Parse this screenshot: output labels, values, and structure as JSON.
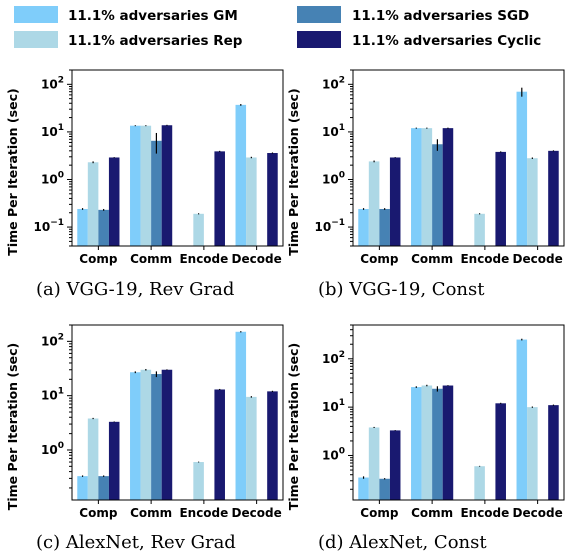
{
  "legend": [
    {
      "label": "11.1% adversaries GM",
      "color": "#7fcdfa"
    },
    {
      "label": "11.1% adversaries SGD",
      "color": "#4682b4"
    },
    {
      "label": "11.1% adversaries Rep",
      "color": "#add8e6"
    },
    {
      "label": "11.1% adversaries Cyclic",
      "color": "#191970"
    }
  ],
  "chart_data": [
    {
      "type": "bar",
      "caption": "(a)  VGG-19, Rev Grad",
      "ylabel": "Time Per Iteration (sec)",
      "yscale": "log",
      "ylim": [
        0.04,
        200
      ],
      "yticks": [
        {
          "v": 0.1,
          "base": "10",
          "exp": "−1"
        },
        {
          "v": 1,
          "base": "10",
          "exp": "0"
        },
        {
          "v": 10,
          "base": "10",
          "exp": "1"
        },
        {
          "v": 100,
          "base": "10",
          "exp": "2"
        }
      ],
      "categories": [
        "Comp",
        "Comm",
        "Encode",
        "Decode"
      ],
      "series": [
        {
          "name": "11.1% adversaries GM",
          "color": "#7fcdfa",
          "values": [
            0.24,
            13.5,
            null,
            37
          ],
          "err": [
            0.01,
            0.3,
            null,
            1.5
          ]
        },
        {
          "name": "11.1% adversaries Rep",
          "color": "#add8e6",
          "values": [
            2.3,
            13.5,
            0.19,
            2.9
          ],
          "err": [
            0.1,
            0.3,
            0.005,
            0.1
          ]
        },
        {
          "name": "11.1% adversaries SGD",
          "color": "#4682b4",
          "values": [
            0.23,
            6.5,
            null,
            null
          ],
          "err": [
            0.01,
            3.0,
            null,
            null
          ]
        },
        {
          "name": "11.1% adversaries Cyclic",
          "color": "#191970",
          "values": [
            2.9,
            13.8,
            3.9,
            3.6
          ],
          "err": [
            0.05,
            0.3,
            0.1,
            0.1
          ]
        }
      ]
    },
    {
      "type": "bar",
      "caption": "(b)  VGG-19, Const",
      "ylabel": "Time Per Iteration (sec)",
      "yscale": "log",
      "ylim": [
        0.04,
        200
      ],
      "yticks": [
        {
          "v": 0.1,
          "base": "10",
          "exp": "−1"
        },
        {
          "v": 1,
          "base": "10",
          "exp": "0"
        },
        {
          "v": 10,
          "base": "10",
          "exp": "1"
        },
        {
          "v": 100,
          "base": "10",
          "exp": "2"
        }
      ],
      "categories": [
        "Comp",
        "Comm",
        "Encode",
        "Decode"
      ],
      "series": [
        {
          "name": "11.1% adversaries GM",
          "color": "#7fcdfa",
          "values": [
            0.24,
            12,
            null,
            70
          ],
          "err": [
            0.01,
            0.3,
            null,
            15
          ]
        },
        {
          "name": "11.1% adversaries Rep",
          "color": "#add8e6",
          "values": [
            2.4,
            12,
            0.19,
            2.8
          ],
          "err": [
            0.1,
            0.3,
            0.005,
            0.1
          ]
        },
        {
          "name": "11.1% adversaries SGD",
          "color": "#4682b4",
          "values": [
            0.24,
            5.5,
            null,
            null
          ],
          "err": [
            0.01,
            1.5,
            null,
            null
          ]
        },
        {
          "name": "11.1% adversaries Cyclic",
          "color": "#191970",
          "values": [
            2.9,
            12,
            3.8,
            4.0
          ],
          "err": [
            0.05,
            0.3,
            0.1,
            0.1
          ]
        }
      ]
    },
    {
      "type": "bar",
      "caption": "(c)  AlexNet, Rev Grad",
      "ylabel": "Time Per Iteration (sec)",
      "yscale": "log",
      "ylim": [
        0.12,
        200
      ],
      "yticks": [
        {
          "v": 1,
          "base": "10",
          "exp": "0"
        },
        {
          "v": 10,
          "base": "10",
          "exp": "1"
        },
        {
          "v": 100,
          "base": "10",
          "exp": "2"
        }
      ],
      "categories": [
        "Comp",
        "Comm",
        "Encode",
        "Decode"
      ],
      "series": [
        {
          "name": "11.1% adversaries GM",
          "color": "#7fcdfa",
          "values": [
            0.33,
            27,
            null,
            150
          ],
          "err": [
            0.01,
            1,
            null,
            4
          ]
        },
        {
          "name": "11.1% adversaries Rep",
          "color": "#add8e6",
          "values": [
            3.8,
            30,
            0.6,
            9.5
          ],
          "err": [
            0.1,
            1,
            0.01,
            0.3
          ]
        },
        {
          "name": "11.1% adversaries SGD",
          "color": "#4682b4",
          "values": [
            0.33,
            25,
            null,
            null
          ],
          "err": [
            0.01,
            3,
            null,
            null
          ]
        },
        {
          "name": "11.1% adversaries Cyclic",
          "color": "#191970",
          "values": [
            3.3,
            30,
            13,
            12
          ],
          "err": [
            0.05,
            0.5,
            0.3,
            0.3
          ]
        }
      ]
    },
    {
      "type": "bar",
      "caption": "(d)  AlexNet, Const",
      "ylabel": "Time Per Iteration (sec)",
      "yscale": "log",
      "ylim": [
        0.12,
        500
      ],
      "yticks": [
        {
          "v": 1,
          "base": "10",
          "exp": "0"
        },
        {
          "v": 10,
          "base": "10",
          "exp": "1"
        },
        {
          "v": 100,
          "base": "10",
          "exp": "2"
        }
      ],
      "categories": [
        "Comp",
        "Comm",
        "Encode",
        "Decode"
      ],
      "series": [
        {
          "name": "11.1% adversaries GM",
          "color": "#7fcdfa",
          "values": [
            0.35,
            26,
            null,
            250
          ],
          "err": [
            0.02,
            1,
            null,
            10
          ]
        },
        {
          "name": "11.1% adversaries Rep",
          "color": "#add8e6",
          "values": [
            3.8,
            28,
            0.6,
            10
          ],
          "err": [
            0.1,
            1,
            0.01,
            0.3
          ]
        },
        {
          "name": "11.1% adversaries SGD",
          "color": "#4682b4",
          "values": [
            0.33,
            24,
            null,
            null
          ],
          "err": [
            0.01,
            3,
            null,
            null
          ]
        },
        {
          "name": "11.1% adversaries Cyclic",
          "color": "#191970",
          "values": [
            3.3,
            28,
            12,
            11
          ],
          "err": [
            0.05,
            0.5,
            0.3,
            0.3
          ]
        }
      ]
    }
  ]
}
